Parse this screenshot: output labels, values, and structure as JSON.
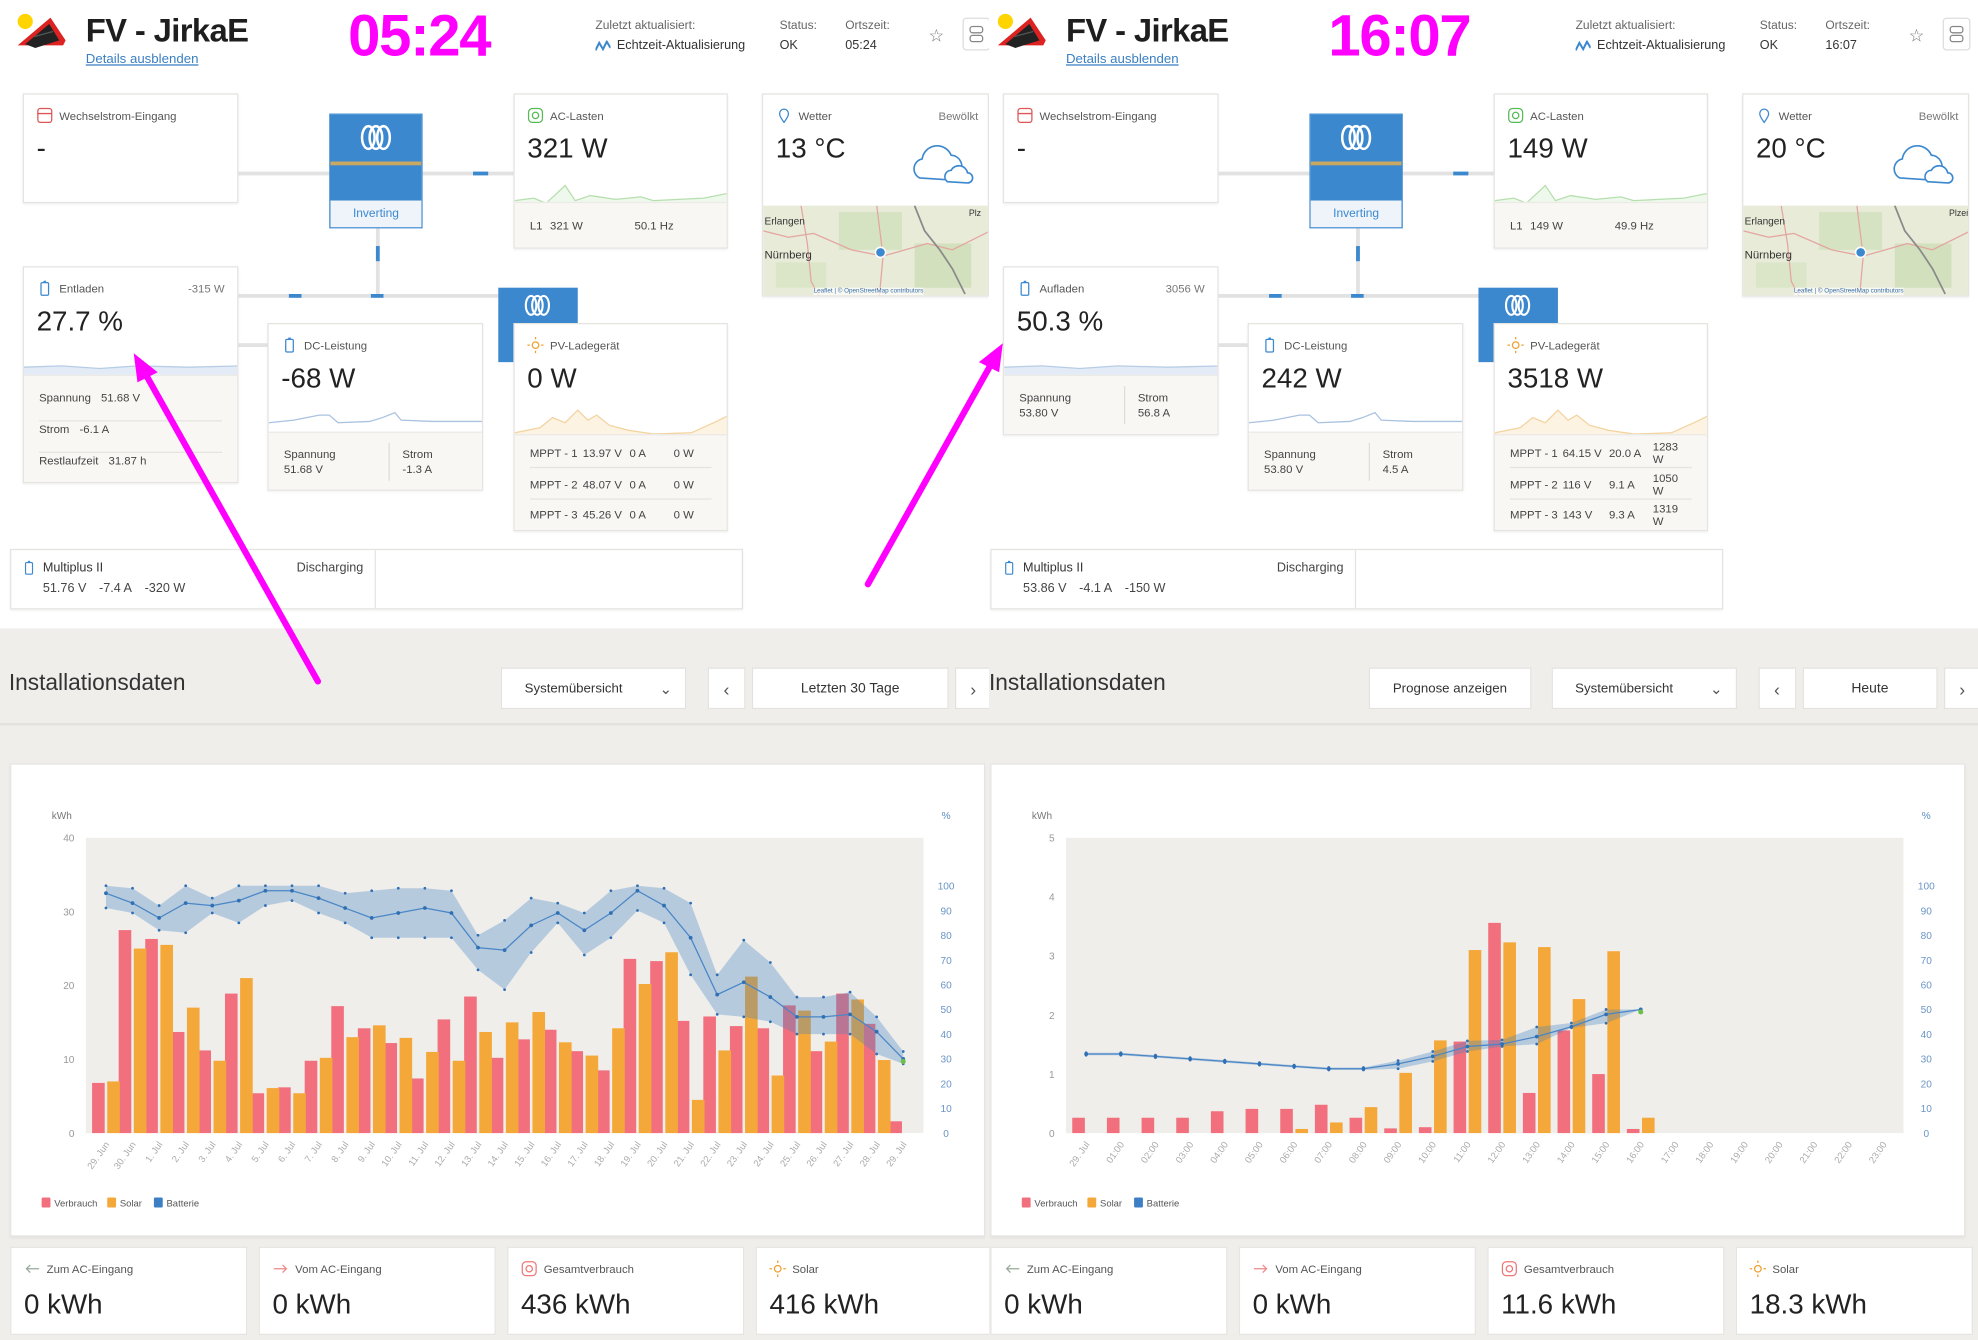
{
  "panels": [
    {
      "header": {
        "title": "FV - JirkaE",
        "details_link": "Details ausblenden",
        "time_overlay": "05:24",
        "last_updated_label": "Zuletzt aktualisiert:",
        "realtime_label": "Echtzeit-Aktualisierung",
        "status_label": "Status:",
        "status_value": "OK",
        "local_time_label": "Ortszeit:",
        "local_time_value": "05:24"
      },
      "ac_input": {
        "title": "Wechselstrom-Eingang",
        "value": "-"
      },
      "inverter": {
        "state": "Inverting"
      },
      "ac_loads": {
        "title": "AC-Lasten",
        "value": "321 W",
        "phase": "L1",
        "phase_power": "321 W",
        "frequency": "50.1 Hz"
      },
      "weather": {
        "title": "Wetter",
        "condition": "Bewölkt",
        "temperature": "13 °C",
        "map_labels": [
          "Erlangen",
          "Nürnberg",
          "Plz"
        ],
        "attribution": "Leaflet | © OpenStreetMap contributors"
      },
      "battery": {
        "state": "Entladen",
        "power": "-315 W",
        "soc": "27.7 %",
        "rows": [
          {
            "label": "Spannung",
            "value": "51.68 V"
          },
          {
            "label": "Strom",
            "value": "-6.1 A"
          },
          {
            "label": "Restlaufzeit",
            "value": "31.87 h"
          }
        ]
      },
      "dc": {
        "title": "DC-Leistung",
        "value": "-68 W",
        "columns": [
          {
            "label": "Spannung",
            "value": "51.68 V"
          },
          {
            "label": "Strom",
            "value": "-1.3 A"
          }
        ]
      },
      "pv": {
        "title": "PV-Ladegerät",
        "value": "0 W",
        "mppt": [
          {
            "name": "MPPT - 1",
            "voltage": "13.97 V",
            "current": "0 A",
            "power": "0 W"
          },
          {
            "name": "MPPT - 2",
            "voltage": "48.07 V",
            "current": "0 A",
            "power": "0 W"
          },
          {
            "name": "MPPT - 3",
            "voltage": "45.26 V",
            "current": "0 A",
            "power": "0 W"
          }
        ]
      },
      "multiplus": {
        "name": "Multiplus II",
        "state": "Discharging",
        "voltage": "51.76 V",
        "current": "-7.4 A",
        "power": "-320 W"
      },
      "install": {
        "title": "Installationsdaten",
        "view_select": "Systemübersicht",
        "range": "Letzten 30 Tage"
      },
      "stats": [
        {
          "label": "Zum AC-Eingang",
          "value": "0 kWh"
        },
        {
          "label": "Vom AC-Eingang",
          "value": "0 kWh"
        },
        {
          "label": "Gesamtverbrauch",
          "value": "436 kWh"
        },
        {
          "label": "Solar",
          "value": "416 kWh"
        }
      ]
    },
    {
      "header": {
        "title": "FV - JirkaE",
        "details_link": "Details ausblenden",
        "time_overlay": "16:07",
        "last_updated_label": "Zuletzt aktualisiert:",
        "realtime_label": "Echtzeit-Aktualisierung",
        "status_label": "Status:",
        "status_value": "OK",
        "local_time_label": "Ortszeit:",
        "local_time_value": "16:07"
      },
      "ac_input": {
        "title": "Wechselstrom-Eingang",
        "value": "-"
      },
      "inverter": {
        "state": "Inverting"
      },
      "ac_loads": {
        "title": "AC-Lasten",
        "value": "149 W",
        "phase": "L1",
        "phase_power": "149 W",
        "frequency": "49.9 Hz"
      },
      "weather": {
        "title": "Wetter",
        "condition": "Bewölkt",
        "temperature": "20 °C",
        "map_labels": [
          "Erlangen",
          "Nürnberg",
          "Plzeň"
        ],
        "attribution": "Leaflet | © OpenStreetMap contributors"
      },
      "battery": {
        "state": "Aufladen",
        "power": "3056 W",
        "soc": "50.3 %",
        "columns": [
          {
            "label": "Spannung",
            "value": "53.80 V"
          },
          {
            "label": "Strom",
            "value": "56.8 A"
          }
        ]
      },
      "dc": {
        "title": "DC-Leistung",
        "value": "242 W",
        "columns": [
          {
            "label": "Spannung",
            "value": "53.80 V"
          },
          {
            "label": "Strom",
            "value": "4.5 A"
          }
        ]
      },
      "pv": {
        "title": "PV-Ladegerät",
        "value": "3518 W",
        "mppt": [
          {
            "name": "MPPT - 1",
            "voltage": "64.15 V",
            "current": "20.0 A",
            "power": "1283 W"
          },
          {
            "name": "MPPT - 2",
            "voltage": "116 V",
            "current": "9.1 A",
            "power": "1050 W"
          },
          {
            "name": "MPPT - 3",
            "voltage": "143 V",
            "current": "9.3 A",
            "power": "1319 W"
          }
        ]
      },
      "multiplus": {
        "name": "Multiplus II",
        "state": "Discharging",
        "voltage": "53.86 V",
        "current": "-4.1 A",
        "power": "-150 W"
      },
      "install": {
        "title": "Installationsdaten",
        "forecast_button": "Prognose anzeigen",
        "view_select": "Systemübersicht",
        "range": "Heute"
      },
      "stats": [
        {
          "label": "Zum AC-Eingang",
          "value": "0 kWh"
        },
        {
          "label": "Vom AC-Eingang",
          "value": "0 kWh"
        },
        {
          "label": "Gesamtverbrauch",
          "value": "11.6 kWh"
        },
        {
          "label": "Solar",
          "value": "18.3 kWh"
        }
      ]
    }
  ],
  "colors": {
    "verbrauch": "#f2707e",
    "solar": "#f5a83a",
    "batterie": "#3d7fc4",
    "accent": "#3b88cf",
    "annotation": "#ff00ff"
  },
  "chart_data": [
    {
      "type": "bar",
      "title": "",
      "xlabel": "",
      "ylabel": "kWh",
      "y2label": "%",
      "ylim": [
        0,
        40
      ],
      "y2lim": [
        0,
        100
      ],
      "yticks": [
        0,
        10,
        20,
        30,
        40
      ],
      "y2ticks": [
        0,
        10,
        20,
        30,
        40,
        50,
        60,
        70,
        80,
        90,
        100
      ],
      "legend": "bottom-left",
      "grid": false,
      "categories": [
        "29. Jun",
        "30. Jun",
        "1. Jul",
        "2. Jul",
        "3. Jul",
        "4. Jul",
        "5. Jul",
        "6. Jul",
        "7. Jul",
        "8. Jul",
        "9. Jul",
        "10. Jul",
        "11. Jul",
        "12. Jul",
        "13. Jul",
        "14. Jul",
        "15. Jul",
        "16. Jul",
        "17. Jul",
        "18. Jul",
        "19. Jul",
        "20. Jul",
        "21. Jul",
        "22. Jul",
        "23. Jul",
        "24. Jul",
        "25. Jul",
        "26. Jul",
        "27. Jul",
        "28. Jul",
        "29. Jul"
      ],
      "series": [
        {
          "name": "Verbrauch",
          "values": [
            6.8,
            27.5,
            26.3,
            13.7,
            11.2,
            18.9,
            5.4,
            6.2,
            9.8,
            17.2,
            14.2,
            12.2,
            7.4,
            15.4,
            18.5,
            10.2,
            12.7,
            14.0,
            11.1,
            8.5,
            23.6,
            23.3,
            15.2,
            15.8,
            14.5,
            14.2,
            17.3,
            11.1,
            18.9,
            14.8,
            1.6
          ]
        },
        {
          "name": "Solar",
          "values": [
            7.0,
            25.0,
            25.5,
            17.0,
            9.8,
            21.0,
            6.1,
            5.4,
            10.2,
            13.0,
            14.6,
            12.9,
            11.0,
            9.8,
            13.7,
            15.0,
            16.4,
            12.3,
            10.5,
            14.2,
            20.2,
            24.5,
            4.5,
            11.2,
            21.2,
            7.8,
            16.6,
            12.4,
            18.1,
            9.9,
            null
          ]
        },
        {
          "name": "Batterie",
          "axis": "right",
          "avg": [
            97,
            93,
            87,
            93,
            92,
            94,
            98,
            98,
            95,
            91,
            87,
            89,
            91,
            89,
            75,
            74,
            84,
            89,
            82,
            89,
            98,
            92,
            79,
            56,
            61,
            55,
            47,
            47,
            48,
            41,
            30
          ],
          "min": [
            91,
            89,
            82,
            81,
            89,
            85,
            92,
            94,
            89,
            85,
            79,
            79,
            79,
            79,
            66,
            58,
            73,
            85,
            72,
            79,
            90,
            85,
            64,
            48,
            47,
            45,
            40,
            40,
            40,
            32,
            28
          ],
          "max": [
            100,
            99,
            92,
            100,
            95,
            100,
            100,
            100,
            100,
            97,
            98,
            99,
            99,
            98,
            80,
            86,
            95,
            93,
            89,
            98,
            100,
            99,
            93,
            64,
            78,
            69,
            55,
            55,
            57,
            47,
            33
          ]
        }
      ]
    },
    {
      "type": "bar",
      "title": "",
      "xlabel": "",
      "ylabel": "kWh",
      "y2label": "%",
      "ylim": [
        0,
        5
      ],
      "y2lim": [
        0,
        100
      ],
      "yticks": [
        0,
        1,
        2,
        3,
        4,
        5
      ],
      "y2ticks": [
        0,
        10,
        20,
        30,
        40,
        50,
        60,
        70,
        80,
        90,
        100
      ],
      "legend": "bottom-left",
      "grid": false,
      "categories": [
        "29. Jul",
        "01:00",
        "02:00",
        "03:00",
        "04:00",
        "05:00",
        "06:00",
        "07:00",
        "08:00",
        "09:00",
        "10:00",
        "11:00",
        "12:00",
        "13:00",
        "14:00",
        "15:00",
        "16:00",
        "17:00",
        "18:00",
        "19:00",
        "20:00",
        "21:00",
        "22:00",
        "23:00"
      ],
      "series": [
        {
          "name": "Verbrauch",
          "values": [
            0.26,
            0.26,
            0.26,
            0.26,
            0.37,
            0.41,
            0.41,
            0.48,
            0.26,
            0.08,
            0.1,
            1.55,
            3.56,
            0.68,
            1.74,
            1.0,
            0.07,
            null,
            null,
            null,
            null,
            null,
            null,
            null
          ]
        },
        {
          "name": "Solar",
          "values": [
            0,
            0,
            0,
            0,
            0,
            0,
            0.07,
            0.18,
            0.44,
            1.02,
            1.57,
            3.1,
            3.23,
            3.15,
            2.27,
            3.08,
            0.26,
            null,
            null,
            null,
            null,
            null,
            null,
            null
          ]
        },
        {
          "name": "Batterie",
          "axis": "right",
          "avg": [
            32,
            32,
            31,
            30,
            29,
            28,
            27,
            26,
            26,
            28,
            31,
            35,
            36,
            39,
            43,
            48,
            50,
            null,
            null,
            null,
            null,
            null,
            null,
            null
          ],
          "min": [
            31.5,
            31.5,
            30.5,
            29.5,
            28.5,
            27.5,
            26.5,
            25.5,
            25.5,
            26,
            29,
            33,
            35,
            36,
            42.6,
            44.4,
            50,
            null,
            null,
            null,
            null,
            null,
            null,
            null
          ],
          "max": [
            32.5,
            32.5,
            31.5,
            30.5,
            29.5,
            28.5,
            27.5,
            26.5,
            26.5,
            29.3,
            33,
            37.3,
            37.7,
            42.9,
            44.5,
            50,
            50,
            null,
            null,
            null,
            null,
            null,
            null,
            null
          ]
        }
      ]
    }
  ]
}
